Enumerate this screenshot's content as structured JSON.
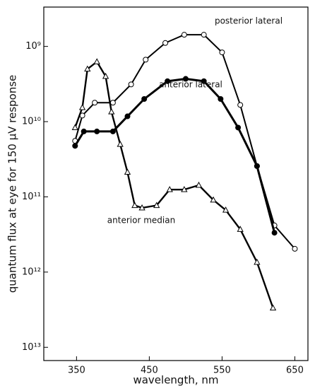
{
  "chart_data": {
    "type": "line",
    "x_label": "wavelength, nm",
    "y_label": "quantum flux at eye for 150 μV response",
    "log_y": true,
    "y_inverted": true,
    "xlim": [
      305,
      668
    ],
    "xticks": [
      350,
      450,
      550,
      650
    ],
    "ylim": [
      300000000,
      15000000000000
    ],
    "yticks": [
      {
        "value": 1000000000,
        "label": "10⁹"
      },
      {
        "value": 10000000000,
        "label": "10¹⁰"
      },
      {
        "value": 100000000000,
        "label": "10¹¹"
      },
      {
        "value": 1000000000000,
        "label": "10¹²"
      },
      {
        "value": 10000000000000,
        "label": "10¹³"
      }
    ],
    "series": [
      {
        "name": "posterior lateral",
        "color": "#000000",
        "marker": "open-circle",
        "x": [
          348,
          358,
          375,
          400,
          425,
          445,
          472,
          498,
          525,
          550,
          575,
          598,
          622,
          650
        ],
        "values": [
          18000000000,
          8300000000,
          5600000000,
          5600000000,
          3200000000,
          1500000000,
          900000000,
          700000000,
          700000000,
          1200000000,
          6000000000,
          39000000000,
          240000000000,
          490000000000
        ]
      },
      {
        "name": "anterior lateral",
        "color": "#000000",
        "marker": "filled-circle",
        "x": [
          348,
          360,
          378,
          400,
          420,
          443,
          475,
          500,
          525,
          548,
          572,
          598,
          622
        ],
        "values": [
          21000000000,
          13500000000,
          13500000000,
          13500000000,
          8500000000,
          5000000000,
          2900000000,
          2700000000,
          2900000000,
          5000000000,
          12000000000,
          39000000000,
          300000000000
        ]
      },
      {
        "name": "anterior median",
        "color": "#000000",
        "marker": "open-triangle",
        "x": [
          348,
          358,
          365,
          378,
          390,
          398,
          410,
          420,
          430,
          440,
          460,
          478,
          498,
          518,
          538,
          555,
          575,
          598,
          620
        ],
        "values": [
          12000000000,
          6500000000,
          2000000000,
          1600000000,
          2500000000,
          7400000000,
          20000000000,
          47000000000,
          130000000000,
          140000000000,
          130000000000,
          80000000000,
          80000000000,
          70000000000,
          110000000000,
          150000000000,
          270000000000,
          740000000000,
          3000000000000
        ]
      }
    ]
  }
}
